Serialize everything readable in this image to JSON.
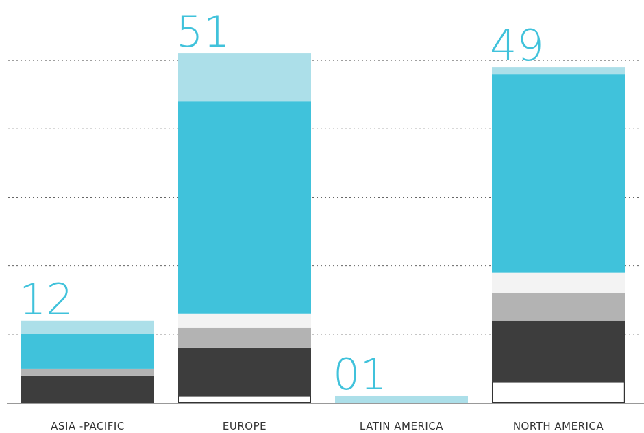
{
  "chart_data": {
    "type": "stacked_bar",
    "categories": [
      "ASIA -PACIFIC",
      "EUROPE",
      "LATIN AMERICA",
      "NORTH AMERICA"
    ],
    "series": [
      {
        "color": "#ffffff",
        "values": [
          0,
          1,
          0,
          3
        ]
      },
      {
        "color": "#3d3d3d",
        "values": [
          4,
          7,
          0,
          9
        ]
      },
      {
        "color": "#b3b3b3",
        "values": [
          1,
          3,
          0,
          4
        ]
      },
      {
        "color": "#f3f3f3",
        "values": [
          0,
          2,
          0,
          3
        ]
      },
      {
        "color": "#40c2db",
        "values": [
          5,
          31,
          0,
          29
        ]
      },
      {
        "color": "#acdfe9",
        "values": [
          2,
          7,
          1,
          1
        ]
      }
    ],
    "totals": [
      12,
      51,
      1,
      49
    ],
    "value_labels": [
      "12",
      "51",
      "01",
      "49"
    ],
    "ylim": [
      0,
      55
    ],
    "yticks": [
      10,
      20,
      30,
      40,
      50
    ],
    "grid": true
  }
}
